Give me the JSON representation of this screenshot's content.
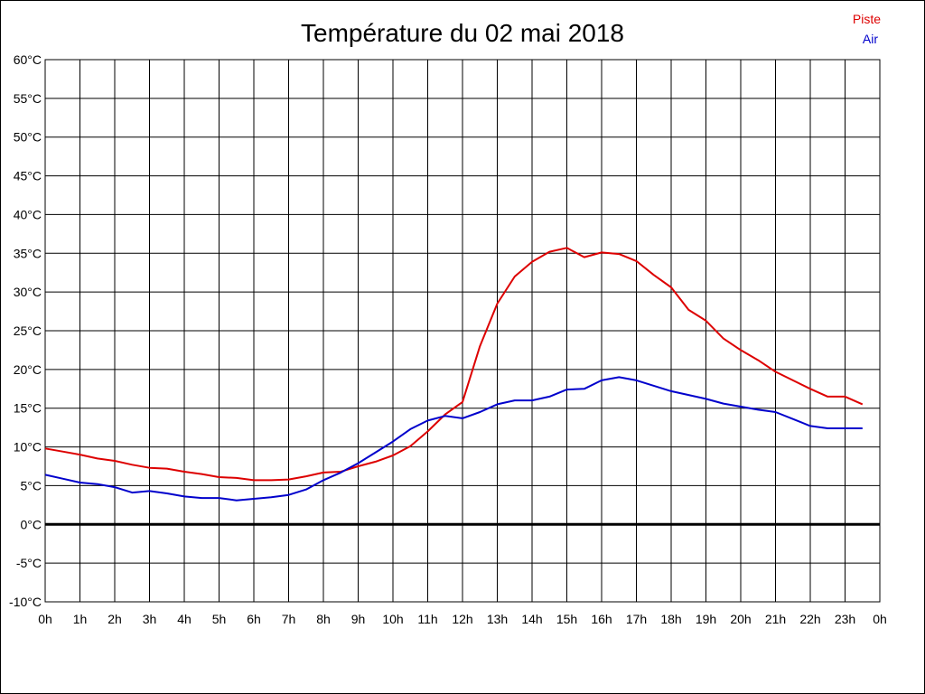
{
  "chart_data": {
    "type": "line",
    "title": "Température du 02 mai 2018",
    "x_ticks": [
      "0h",
      "1h",
      "2h",
      "3h",
      "4h",
      "5h",
      "6h",
      "7h",
      "8h",
      "9h",
      "10h",
      "11h",
      "12h",
      "13h",
      "14h",
      "15h",
      "16h",
      "17h",
      "18h",
      "19h",
      "20h",
      "21h",
      "22h",
      "23h",
      "0h"
    ],
    "y_ticks": [
      "-10°C",
      "-5°C",
      "0°C",
      "5°C",
      "10°C",
      "15°C",
      "20°C",
      "25°C",
      "30°C",
      "35°C",
      "40°C",
      "45°C",
      "50°C",
      "55°C",
      "60°C"
    ],
    "ylim": [
      -10,
      60
    ],
    "xlim": [
      0,
      24
    ],
    "grid": true,
    "legend_position": "top-right",
    "x": [
      0,
      0.5,
      1,
      1.5,
      2,
      2.5,
      3,
      3.5,
      4,
      4.5,
      5,
      5.5,
      6,
      6.5,
      7,
      7.5,
      8,
      8.5,
      9,
      9.5,
      10,
      10.5,
      11,
      11.5,
      12,
      12.5,
      13,
      13.5,
      14,
      14.5,
      15,
      15.5,
      16,
      16.5,
      17,
      17.5,
      18,
      18.5,
      19,
      19.5,
      20,
      20.5,
      21,
      21.5,
      22,
      22.5,
      23,
      23.5
    ],
    "series": [
      {
        "name": "Piste",
        "color": "#dd0000",
        "values": [
          9.8,
          9.4,
          9.0,
          8.5,
          8.2,
          7.7,
          7.3,
          7.2,
          6.8,
          6.5,
          6.1,
          6.0,
          5.7,
          5.7,
          5.8,
          6.2,
          6.7,
          6.8,
          7.5,
          8.1,
          8.9,
          10.1,
          12.0,
          14.2,
          15.8,
          23.0,
          28.5,
          32.0,
          33.9,
          35.2,
          35.7,
          34.5,
          35.1,
          34.9,
          34.0,
          32.2,
          30.6,
          27.7,
          26.3,
          24.0,
          22.5,
          21.2,
          19.7,
          18.6,
          17.5,
          16.5,
          16.5,
          15.5
        ]
      },
      {
        "name": "Air",
        "color": "#0000cc",
        "values": [
          6.4,
          5.9,
          5.4,
          5.2,
          4.8,
          4.1,
          4.3,
          4.0,
          3.6,
          3.4,
          3.4,
          3.1,
          3.3,
          3.5,
          3.8,
          4.5,
          5.7,
          6.7,
          7.9,
          9.3,
          10.7,
          12.3,
          13.4,
          14.0,
          13.7,
          14.5,
          15.5,
          16.0,
          16.0,
          16.5,
          17.4,
          17.5,
          18.6,
          19.0,
          18.6,
          17.9,
          17.2,
          16.7,
          16.2,
          15.6,
          15.2,
          14.8,
          14.5,
          13.6,
          12.7,
          12.4,
          12.4,
          12.4
        ]
      }
    ]
  }
}
